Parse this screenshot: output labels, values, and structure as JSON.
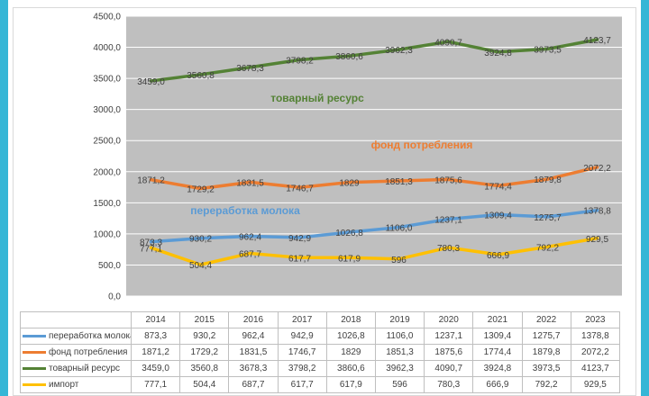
{
  "colors": {
    "plot_bg": "#bfbfbf",
    "grid": "#ffffff",
    "accent_bars": "#35b6d6",
    "milk_processing": "#5b9bd5",
    "consumption_fund": "#ed7d31",
    "commodity_resource": "#548235",
    "import": "#ffc000"
  },
  "annotations": {
    "commodity_resource": "товарный ресурс",
    "consumption_fund": "фонд потребления",
    "milk_processing": "переработка молока"
  },
  "chart_data": {
    "type": "line",
    "title": "",
    "xlabel": "",
    "ylabel": "",
    "ylim": [
      0,
      4500
    ],
    "yticks": [
      "0,0",
      "500,0",
      "1000,0",
      "1500,0",
      "2000,0",
      "2500,0",
      "3000,0",
      "3500,0",
      "4000,0",
      "4500,0"
    ],
    "grid": true,
    "legend": "data-table-below",
    "categories": [
      "2014",
      "2015",
      "2016",
      "2017",
      "2018",
      "2019",
      "2020",
      "2021",
      "2022",
      "2023"
    ],
    "series": [
      {
        "name": "переработка молока",
        "color_key": "milk_processing",
        "values": [
          873.3,
          930.2,
          962.4,
          942.9,
          1026.8,
          1106.0,
          1237.1,
          1309.4,
          1275.7,
          1378.8
        ],
        "labels": [
          "873,3",
          "930,2",
          "962,4",
          "942,9",
          "1026,8",
          "1106,0",
          "1237,1",
          "1309,4",
          "1275,7",
          "1378,8"
        ]
      },
      {
        "name": "фонд потребления",
        "color_key": "consumption_fund",
        "values": [
          1871.2,
          1729.2,
          1831.5,
          1746.7,
          1829,
          1851.3,
          1875.6,
          1774.4,
          1879.8,
          2072.2
        ],
        "labels": [
          "1871,2",
          "1729,2",
          "1831,5",
          "1746,7",
          "1829",
          "1851,3",
          "1875,6",
          "1774,4",
          "1879,8",
          "2072,2"
        ]
      },
      {
        "name": "товарный ресурс",
        "color_key": "commodity_resource",
        "values": [
          3459.0,
          3560.8,
          3678.3,
          3798.2,
          3860.6,
          3962.3,
          4090.7,
          3924.8,
          3973.5,
          4123.7
        ],
        "labels": [
          "3459,0",
          "3560,8",
          "3678,3",
          "3798,2",
          "3860,6",
          "3962,3",
          "4090,7",
          "3924,8",
          "3973,5",
          "4123,7"
        ]
      },
      {
        "name": "импорт",
        "color_key": "import",
        "values": [
          777.1,
          504.4,
          687.7,
          617.7,
          617.9,
          596,
          780.3,
          666.9,
          792.2,
          929.5
        ],
        "labels": [
          "777,1",
          "504,4",
          "687,7",
          "617,7",
          "617,9",
          "596",
          "780,3",
          "666,9",
          "792,2",
          "929,5"
        ]
      }
    ]
  }
}
